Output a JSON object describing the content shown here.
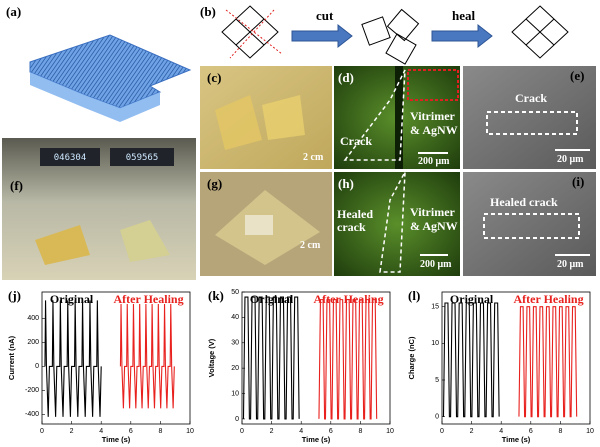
{
  "panels": {
    "a": {
      "label": "(a)"
    },
    "b": {
      "label": "(b)",
      "steps": [
        "cut",
        "heal"
      ]
    },
    "c": {
      "label": "(c)",
      "scale": "2 cm"
    },
    "d": {
      "label": "(d)",
      "texts": [
        "Crack",
        "Vitrimer",
        "& AgNW"
      ],
      "scale": "200 μm"
    },
    "e": {
      "label": "(e)",
      "text": "Crack",
      "scale": "20 μm"
    },
    "f": {
      "label": "(f)",
      "readings": [
        "046304",
        "059565"
      ]
    },
    "g": {
      "label": "(g)",
      "scale": "2 cm"
    },
    "h": {
      "label": "(h)",
      "texts": [
        "Healed",
        "crack",
        "Vitrimer",
        "& AgNW"
      ],
      "scale": "200 μm"
    },
    "i": {
      "label": "(i)",
      "text": "Healed crack",
      "scale": "20 μm"
    }
  },
  "chart_data": [
    {
      "type": "line",
      "title": "(j)",
      "x_label": "Time (s)",
      "y_label": "Current (nA)",
      "xlim": [
        0,
        10
      ],
      "xticks": [
        0,
        2,
        4,
        6,
        8,
        10
      ],
      "ylim": [
        -480,
        620
      ],
      "yticks": [
        -400,
        -200,
        0,
        200,
        400
      ],
      "series": [
        {
          "name": "Original",
          "color": "#000000",
          "x": [
            0.2,
            0.24,
            0.3,
            0.42,
            0.5,
            0.7,
            0.74,
            0.8,
            0.92,
            1.0,
            1.2,
            1.24,
            1.3,
            1.42,
            1.5,
            1.7,
            1.74,
            1.8,
            1.92,
            2.0,
            2.2,
            2.24,
            2.3,
            2.42,
            2.5,
            2.7,
            2.74,
            2.8,
            2.92,
            3.0,
            3.2,
            3.24,
            3.3,
            3.42,
            3.5,
            3.7,
            3.74,
            3.8,
            3.92,
            4.0
          ],
          "values": [
            0,
            550,
            0,
            -420,
            0,
            0,
            550,
            0,
            -420,
            0,
            0,
            550,
            0,
            -420,
            0,
            0,
            550,
            0,
            -420,
            0,
            0,
            550,
            0,
            -420,
            0,
            0,
            550,
            0,
            -420,
            0,
            0,
            550,
            0,
            -420,
            0,
            0,
            550,
            0,
            -420,
            0
          ]
        },
        {
          "name": "After Healing",
          "color": "#e8211e",
          "x": [
            5.3,
            5.34,
            5.4,
            5.5,
            5.58,
            5.72,
            5.76,
            5.82,
            5.92,
            6.0,
            6.14,
            6.18,
            6.24,
            6.34,
            6.42,
            6.56,
            6.6,
            6.66,
            6.76,
            6.84,
            6.98,
            7.02,
            7.08,
            7.18,
            7.26,
            7.4,
            7.44,
            7.5,
            7.6,
            7.68,
            7.82,
            7.86,
            7.92,
            8.02,
            8.1,
            8.24,
            8.28,
            8.34,
            8.44,
            8.52,
            8.66,
            8.7,
            8.76,
            8.86,
            8.94
          ],
          "values": [
            0,
            520,
            0,
            -350,
            0,
            0,
            520,
            0,
            -350,
            0,
            0,
            520,
            0,
            -350,
            0,
            0,
            520,
            0,
            -350,
            0,
            0,
            520,
            0,
            -350,
            0,
            0,
            520,
            0,
            -350,
            0,
            0,
            520,
            0,
            -350,
            0,
            0,
            520,
            0,
            -350,
            0,
            0,
            520,
            0,
            -350,
            0
          ]
        }
      ]
    },
    {
      "type": "line",
      "title": "(k)",
      "x_label": "Time (s)",
      "y_label": "Voltage (V)",
      "xlim": [
        0,
        10
      ],
      "xticks": [
        0,
        2,
        4,
        6,
        8,
        10
      ],
      "ylim": [
        -2,
        50
      ],
      "yticks": [
        0,
        10,
        20,
        30,
        40,
        50
      ],
      "series": [
        {
          "name": "Original",
          "color": "#000000",
          "x": [
            0.1,
            0.2,
            0.4,
            0.5,
            0.58,
            0.68,
            0.88,
            0.98,
            1.06,
            1.16,
            1.36,
            1.46,
            1.54,
            1.64,
            1.84,
            1.94,
            2.02,
            2.12,
            2.32,
            2.42,
            2.5,
            2.6,
            2.8,
            2.9,
            2.98,
            3.08,
            3.28,
            3.38,
            3.46,
            3.56,
            3.76,
            3.86
          ],
          "values": [
            0,
            48,
            48,
            0,
            0,
            48,
            48,
            0,
            0,
            48,
            48,
            0,
            0,
            48,
            48,
            0,
            0,
            48,
            48,
            0,
            0,
            48,
            48,
            0,
            0,
            48,
            48,
            0,
            0,
            48,
            48,
            0
          ]
        },
        {
          "name": "After Healing",
          "color": "#e8211e",
          "x": [
            5.2,
            5.3,
            5.48,
            5.58,
            5.64,
            5.74,
            5.92,
            6.02,
            6.08,
            6.18,
            6.36,
            6.46,
            6.52,
            6.62,
            6.8,
            6.9,
            6.96,
            7.06,
            7.24,
            7.34,
            7.4,
            7.5,
            7.68,
            7.78,
            7.84,
            7.94,
            8.12,
            8.22,
            8.28,
            8.38,
            8.56,
            8.66,
            8.72,
            8.82,
            9.0,
            9.1
          ],
          "values": [
            0,
            47,
            47,
            0,
            0,
            47,
            47,
            0,
            0,
            47,
            47,
            0,
            0,
            47,
            47,
            0,
            0,
            47,
            47,
            0,
            0,
            47,
            47,
            0,
            0,
            47,
            47,
            0,
            0,
            47,
            47,
            0,
            0,
            47,
            47,
            0
          ]
        }
      ]
    },
    {
      "type": "line",
      "title": "(l)",
      "x_label": "Time (s)",
      "y_label": "Charge (nC)",
      "xlim": [
        0,
        10
      ],
      "xticks": [
        0,
        2,
        4,
        6,
        8,
        10
      ],
      "ylim": [
        -1,
        17
      ],
      "yticks": [
        0,
        5,
        10,
        15
      ],
      "series": [
        {
          "name": "Original",
          "color": "#000000",
          "x": [
            0.1,
            0.2,
            0.4,
            0.5,
            0.58,
            0.68,
            0.88,
            0.98,
            1.06,
            1.16,
            1.36,
            1.46,
            1.54,
            1.64,
            1.84,
            1.94,
            2.02,
            2.12,
            2.32,
            2.42,
            2.5,
            2.6,
            2.8,
            2.9,
            2.98,
            3.08,
            3.28,
            3.38,
            3.46,
            3.56,
            3.76,
            3.86
          ],
          "values": [
            0,
            15.5,
            15.5,
            0,
            0,
            15.5,
            15.5,
            0,
            0,
            15.5,
            15.5,
            0,
            0,
            15.5,
            15.5,
            0,
            0,
            15.5,
            15.5,
            0,
            0,
            15.5,
            15.5,
            0,
            0,
            15.5,
            15.5,
            0,
            0,
            15.5,
            15.5,
            0
          ]
        },
        {
          "name": "After Healing",
          "color": "#e8211e",
          "x": [
            5.2,
            5.3,
            5.48,
            5.58,
            5.64,
            5.74,
            5.92,
            6.02,
            6.08,
            6.18,
            6.36,
            6.46,
            6.52,
            6.62,
            6.8,
            6.9,
            6.96,
            7.06,
            7.24,
            7.34,
            7.4,
            7.5,
            7.68,
            7.78,
            7.84,
            7.94,
            8.12,
            8.22,
            8.28,
            8.38,
            8.56,
            8.66,
            8.72,
            8.82,
            9.0,
            9.1
          ],
          "values": [
            0,
            15,
            15,
            0,
            0,
            15,
            15,
            0,
            0,
            15,
            15,
            0,
            0,
            15,
            15,
            0,
            0,
            15,
            15,
            0,
            0,
            15,
            15,
            0,
            0,
            15,
            15,
            0,
            0,
            15,
            15,
            0,
            0,
            15,
            15,
            0
          ]
        }
      ]
    }
  ]
}
